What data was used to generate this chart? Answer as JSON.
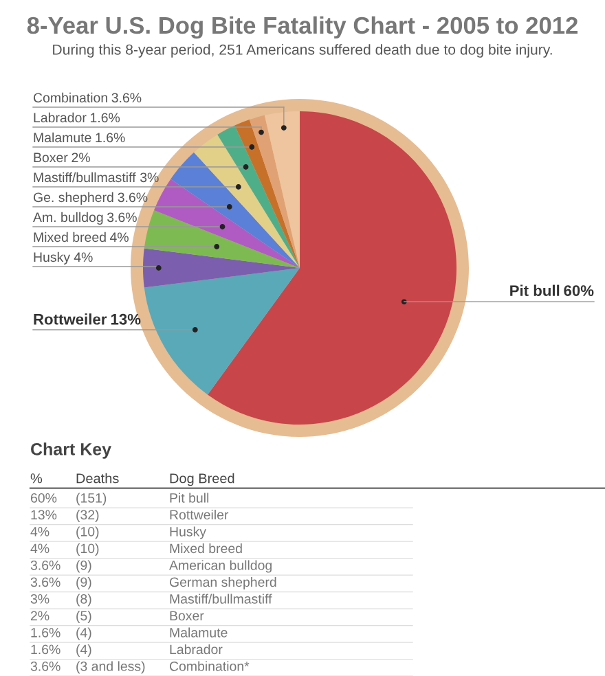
{
  "chart_data": {
    "type": "pie",
    "title": "8-Year U.S. Dog Bite Fatality Chart - 2005 to 2012",
    "subtitle": "During this 8-year period, 251 Americans suffered death due to dog bite injury.",
    "categories": [
      "Pit bull",
      "Rottweiler",
      "Husky",
      "Mixed breed",
      "Am. bulldog",
      "Ge. shepherd",
      "Mastiff/bullmastiff",
      "Boxer",
      "Malamute",
      "Labrador",
      "Combination"
    ],
    "values": [
      60,
      13,
      4,
      4,
      3.6,
      3.6,
      3,
      2,
      1.6,
      1.6,
      3.6
    ],
    "value_labels": [
      "60%",
      "13%",
      "4%",
      "4%",
      "3.6%",
      "3.6%",
      "3%",
      "2%",
      "1.6%",
      "1.6%",
      "3.6%"
    ],
    "colors": [
      "#c8454a",
      "#5aa9b8",
      "#7b5fae",
      "#7dbb52",
      "#b05bc4",
      "#5b80d8",
      "#e2cf88",
      "#4fae8a",
      "#c7702a",
      "#e0a274",
      "#eec59e"
    ],
    "annotations": [
      "Chart Key",
      "%",
      "Deaths",
      "Dog Breed",
      "60%",
      "(151)",
      "Pit bull",
      "13%",
      "(32)",
      "Rottweiler",
      "4%",
      "(10)",
      "Husky",
      "4%",
      "(10)",
      "Mixed breed",
      "3.6%",
      "(9)",
      "American bulldog",
      "3.6%",
      "(9)",
      "German shepherd",
      "3%",
      "(8)",
      "Mastiff/bullmastiff",
      "2%",
      "(5)",
      "Boxer",
      "1.6%",
      "(4)",
      "Malamute",
      "1.6%",
      "(4)",
      "Labrador",
      "3.6%",
      "(3 and less)",
      "Combination*"
    ]
  }
}
